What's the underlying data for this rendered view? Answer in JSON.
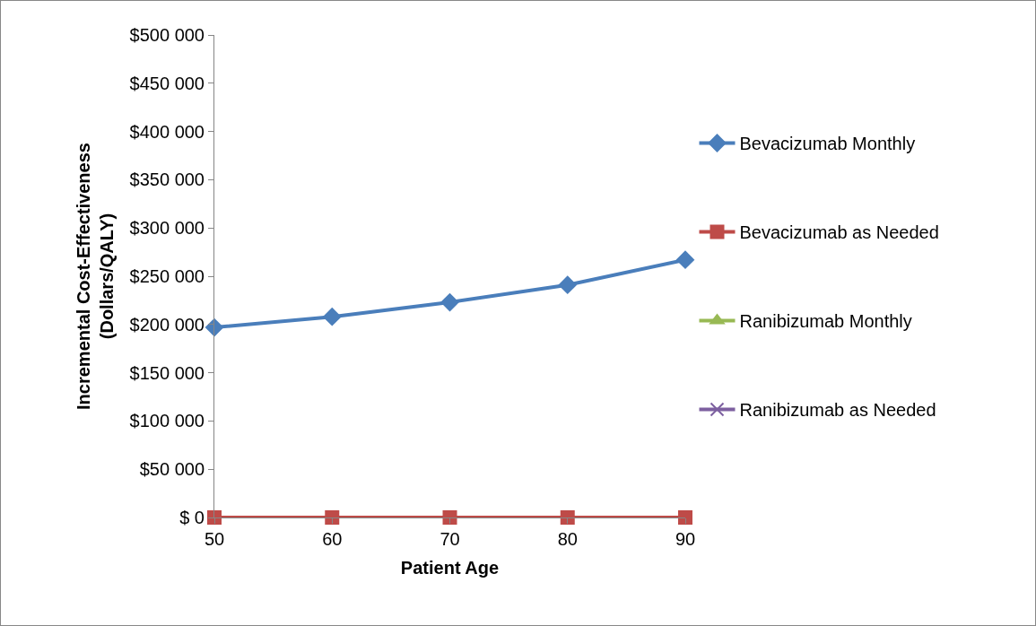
{
  "chart_data": {
    "type": "line",
    "xlabel": "Patient Age",
    "ylabel": "Incremental Cost-Effectiveness\n(Dollars/QALY)",
    "x": [
      50,
      60,
      70,
      80,
      90
    ],
    "series": [
      {
        "name": "Bevacizumab Monthly",
        "color": "#4a7ebb",
        "marker": "diamond",
        "values": [
          197000,
          208000,
          223000,
          241000,
          267000
        ]
      },
      {
        "name": "Bevacizumab as Needed",
        "color": "#be4b48",
        "marker": "square",
        "values": [
          0,
          0,
          0,
          0,
          0
        ]
      },
      {
        "name": "Ranibizumab Monthly",
        "color": "#98b954",
        "marker": "triangle",
        "values": [
          null,
          null,
          null,
          null,
          null
        ]
      },
      {
        "name": "Ranibizumab as Needed",
        "color": "#7d60a0",
        "marker": "cross",
        "values": [
          null,
          null,
          null,
          null,
          null
        ]
      }
    ],
    "xlim": [
      50,
      90
    ],
    "xticks": [
      50,
      60,
      70,
      80,
      90
    ],
    "ylim": [
      0,
      500000
    ],
    "yticks": [
      {
        "value": 0,
        "label": "$ 0"
      },
      {
        "value": 50000,
        "label": "$50 000"
      },
      {
        "value": 100000,
        "label": "$100 000"
      },
      {
        "value": 150000,
        "label": "$150 000"
      },
      {
        "value": 200000,
        "label": "$200 000"
      },
      {
        "value": 250000,
        "label": "$250 000"
      },
      {
        "value": 300000,
        "label": "$300 000"
      },
      {
        "value": 350000,
        "label": "$350 000"
      },
      {
        "value": 400000,
        "label": "$400 000"
      },
      {
        "value": 450000,
        "label": "$450 000"
      },
      {
        "value": 500000,
        "label": "$500 000"
      }
    ],
    "grid": false,
    "legend": "right"
  }
}
